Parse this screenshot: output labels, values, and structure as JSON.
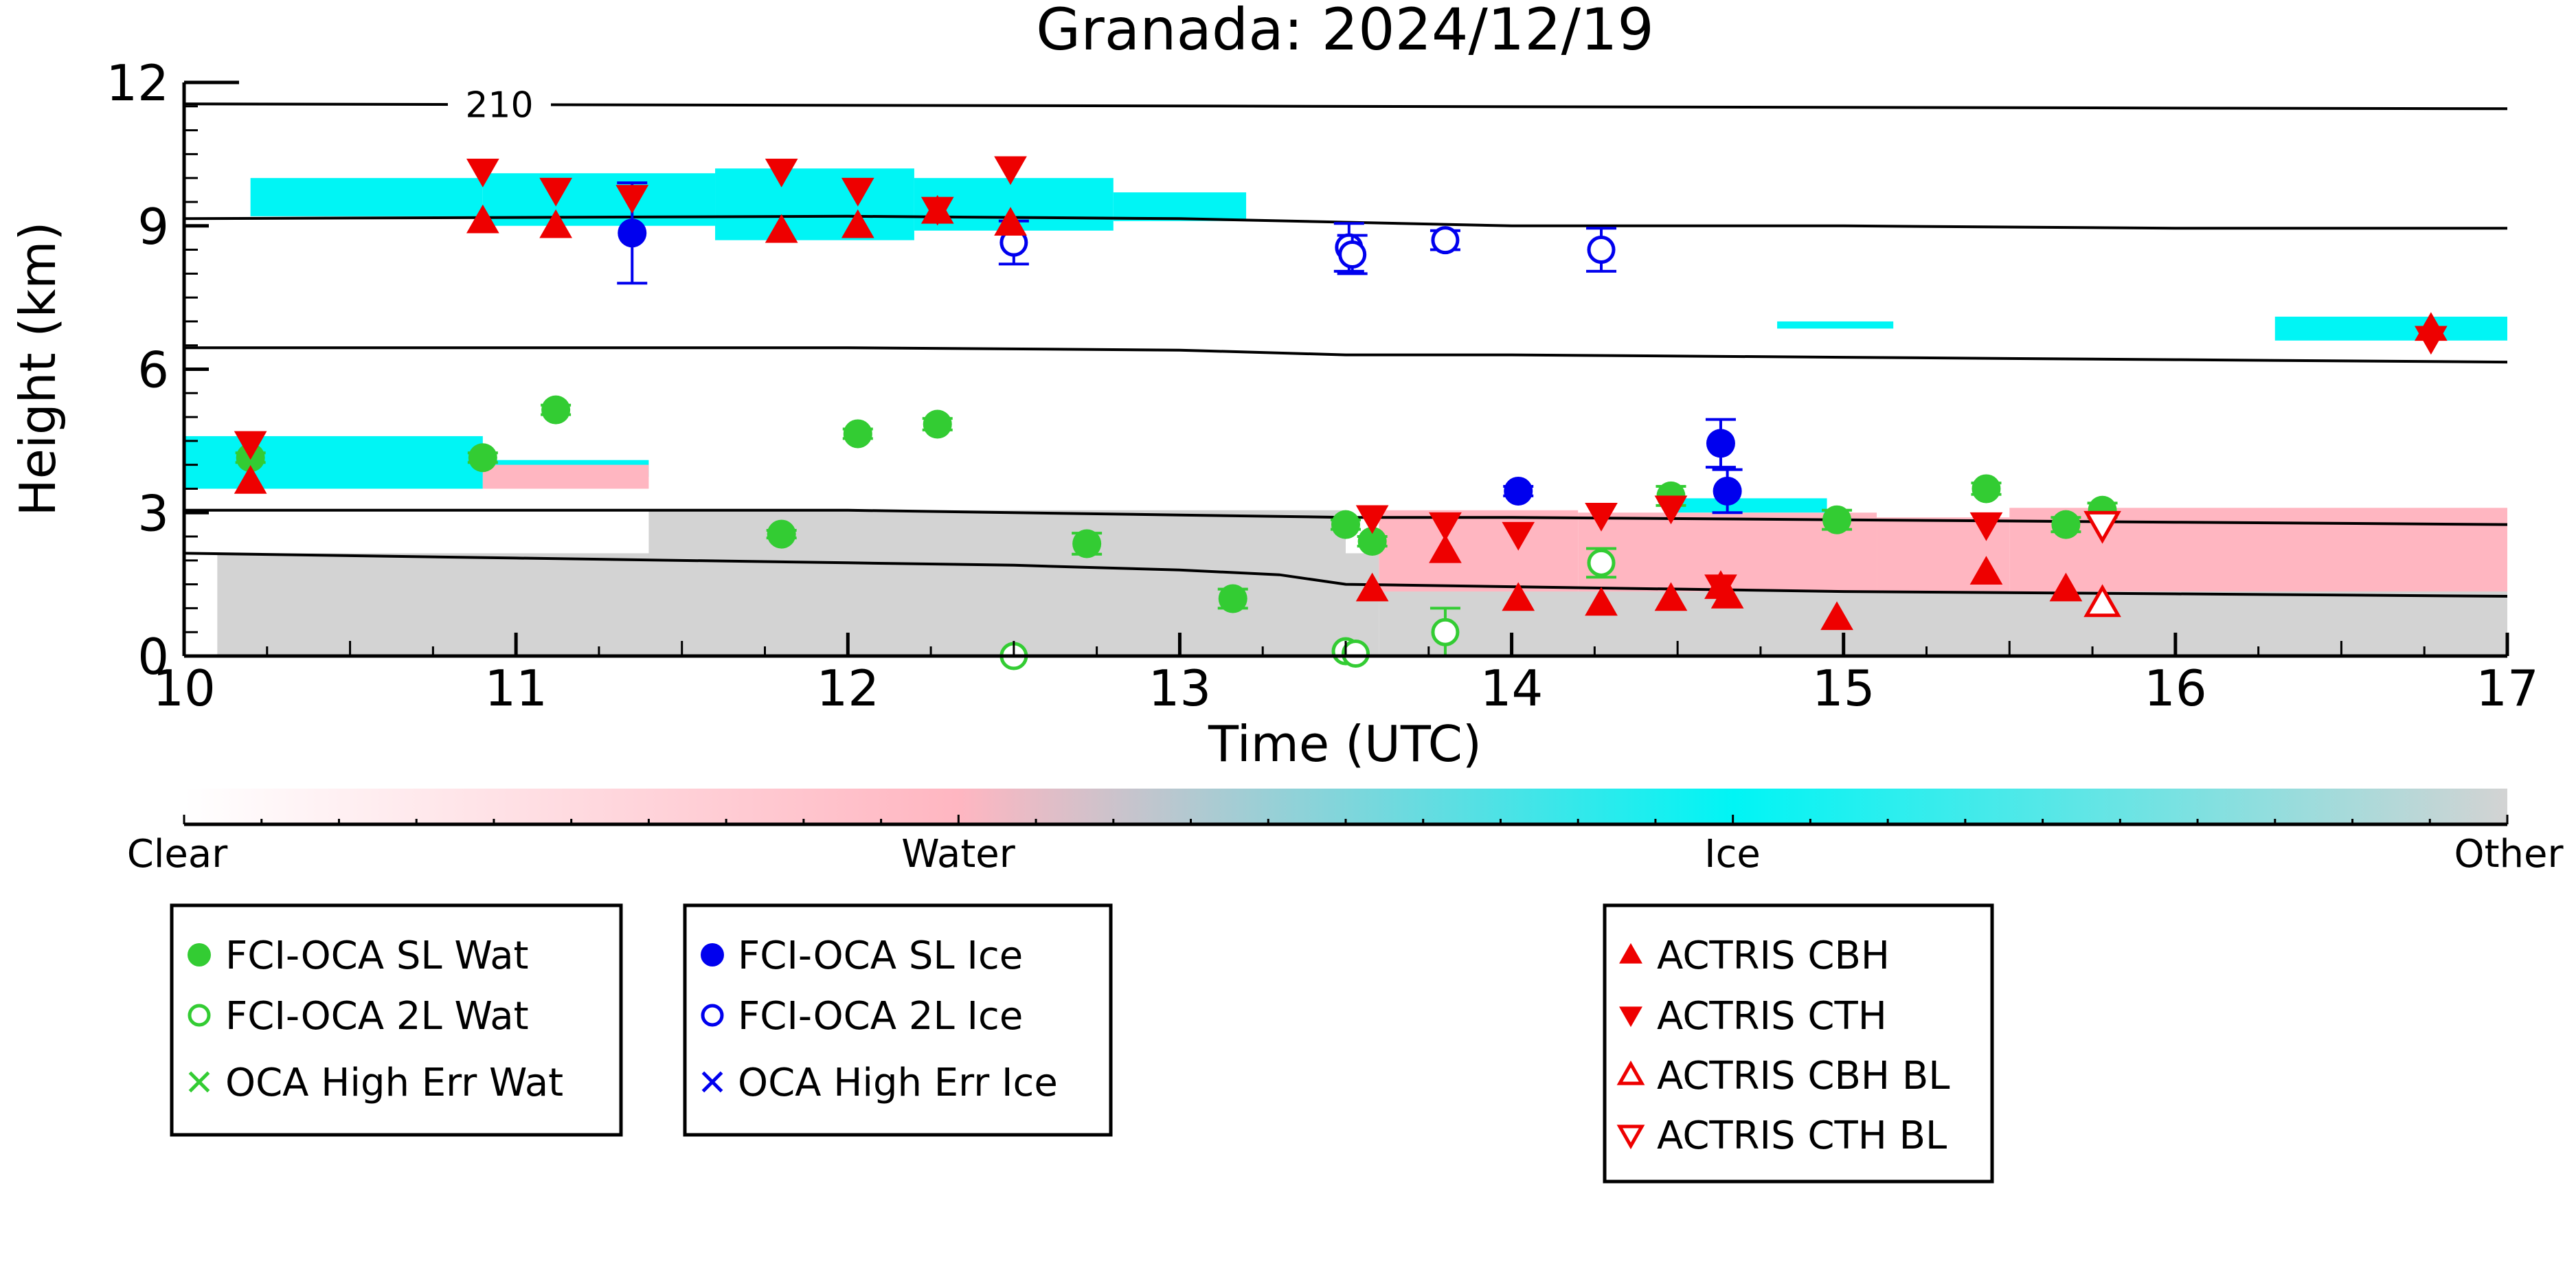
{
  "chart_data": {
    "type": "scatter",
    "title": "Granada: 2024/12/19",
    "xlabel": "Time (UTC)",
    "ylabel": "Height (km)",
    "xlim": [
      10,
      17
    ],
    "ylim": [
      0,
      12
    ],
    "xticks": [
      10,
      11,
      12,
      13,
      14,
      15,
      16,
      17
    ],
    "yticks": [
      0,
      3,
      6,
      9,
      12
    ],
    "reference_lines": [
      {
        "label": "210",
        "points": [
          [
            10,
            11.55
          ],
          [
            17,
            11.45
          ]
        ]
      },
      {
        "points": [
          [
            10,
            9.15
          ],
          [
            12,
            9.2
          ],
          [
            13,
            9.15
          ],
          [
            14,
            9.0
          ],
          [
            15,
            9.0
          ],
          [
            16,
            8.95
          ],
          [
            17,
            8.95
          ]
        ]
      },
      {
        "points": [
          [
            10,
            6.45
          ],
          [
            11,
            6.45
          ],
          [
            12,
            6.45
          ],
          [
            13,
            6.4
          ],
          [
            13.5,
            6.3
          ],
          [
            14,
            6.3
          ],
          [
            15,
            6.25
          ],
          [
            16,
            6.2
          ],
          [
            17,
            6.15
          ]
        ]
      },
      {
        "points": [
          [
            10,
            3.05
          ],
          [
            11,
            3.05
          ],
          [
            12,
            3.05
          ],
          [
            13,
            2.95
          ],
          [
            13.5,
            2.9
          ],
          [
            14,
            2.9
          ],
          [
            15,
            2.85
          ],
          [
            16,
            2.8
          ],
          [
            17,
            2.75
          ]
        ]
      },
      {
        "points": [
          [
            10,
            2.15
          ],
          [
            11,
            2.05
          ],
          [
            12,
            1.95
          ],
          [
            12.5,
            1.9
          ],
          [
            13,
            1.8
          ],
          [
            13.3,
            1.7
          ],
          [
            13.5,
            1.5
          ],
          [
            14,
            1.45
          ],
          [
            15,
            1.35
          ],
          [
            16,
            1.3
          ],
          [
            17,
            1.25
          ]
        ]
      }
    ],
    "series": [
      {
        "name": "FCI-OCA SL Wat",
        "marker": "filled-circle",
        "color": "#33cc33",
        "x": [
          10.2,
          10.9,
          11.12,
          11.8,
          12.03,
          12.27,
          12.72,
          13.16,
          13.5,
          13.58,
          14.48,
          14.98,
          15.43,
          15.67,
          15.78
        ],
        "y": [
          4.15,
          4.15,
          5.15,
          2.55,
          4.65,
          4.85,
          2.35,
          1.2,
          2.75,
          2.4,
          3.35,
          2.85,
          3.5,
          2.75,
          3.05
        ],
        "err": [
          0.1,
          0.1,
          0.1,
          0.08,
          0.1,
          0.12,
          0.22,
          0.2,
          0.1,
          0.1,
          0.2,
          0.2,
          0.12,
          0.15,
          0.15
        ]
      },
      {
        "name": "FCI-OCA 2L Wat",
        "marker": "open-circle",
        "color": "#33cc33",
        "x": [
          12.5,
          13.5,
          13.53,
          13.8,
          14.27
        ],
        "y": [
          0.0,
          0.1,
          0.05,
          0.5,
          1.95
        ],
        "err": [
          0,
          0,
          0,
          0.5,
          0.3
        ]
      },
      {
        "name": "FCI-OCA SL Ice",
        "marker": "filled-circle",
        "color": "#0000ee",
        "x": [
          11.35,
          14.02,
          14.63,
          14.65
        ],
        "y": [
          8.85,
          3.45,
          4.45,
          3.45
        ],
        "err": [
          1.05,
          0.1,
          0.5,
          0.45
        ]
      },
      {
        "name": "FCI-OCA 2L Ice",
        "marker": "open-circle",
        "color": "#0000ee",
        "x": [
          12.5,
          13.51,
          13.52,
          13.8,
          14.27
        ],
        "y": [
          8.65,
          8.55,
          8.4,
          8.7,
          8.5
        ],
        "err": [
          0.45,
          0.5,
          0.4,
          0.2,
          0.45
        ]
      },
      {
        "name": "ACTRIS CBH",
        "marker": "filled-triangle-up",
        "color": "#ee0000",
        "x": [
          10.2,
          10.9,
          11.12,
          11.8,
          12.03,
          12.27,
          12.49,
          13.58,
          13.8,
          14.02,
          14.27,
          14.48,
          14.63,
          14.65,
          14.98,
          15.43,
          15.67,
          16.77
        ],
        "y": [
          3.65,
          9.1,
          9.0,
          8.9,
          9.0,
          9.3,
          9.05,
          1.4,
          2.2,
          1.2,
          1.1,
          1.2,
          1.45,
          1.25,
          0.8,
          1.75,
          1.4,
          6.85
        ]
      },
      {
        "name": "ACTRIS CTH",
        "marker": "filled-triangle-down",
        "color": "#ee0000",
        "x": [
          10.2,
          10.9,
          11.12,
          11.35,
          11.8,
          12.03,
          12.27,
          12.49,
          13.58,
          13.8,
          14.02,
          14.27,
          14.48,
          14.63,
          15.43,
          16.77
        ],
        "y": [
          4.45,
          10.15,
          9.75,
          9.6,
          10.15,
          9.75,
          9.35,
          10.2,
          2.9,
          2.75,
          2.55,
          2.95,
          3.1,
          1.45,
          2.75,
          6.65
        ]
      },
      {
        "name": "ACTRIS CBH BL",
        "marker": "open-triangle-up",
        "color": "#ee0000",
        "x": [
          15.78
        ],
        "y": [
          1.1
        ]
      },
      {
        "name": "ACTRIS CTH BL",
        "marker": "open-triangle-down",
        "color": "#ee0000",
        "x": [
          15.78
        ],
        "y": [
          2.75
        ]
      },
      {
        "name": "OCA High Err Wat",
        "marker": "x",
        "color": "#33cc33",
        "x": [],
        "y": []
      },
      {
        "name": "OCA High Err Ice",
        "marker": "x",
        "color": "#0000ee",
        "x": [],
        "y": []
      }
    ],
    "regions": [
      {
        "class": "Ice",
        "x": [
          10.2,
          10.9
        ],
        "y": [
          9.2,
          10.0
        ]
      },
      {
        "class": "Ice",
        "x": [
          10.9,
          11.6
        ],
        "y": [
          9.0,
          10.1
        ]
      },
      {
        "class": "Ice",
        "x": [
          11.6,
          12.2
        ],
        "y": [
          8.7,
          10.2
        ]
      },
      {
        "class": "Ice",
        "x": [
          12.2,
          12.8
        ],
        "y": [
          8.9,
          10.0
        ]
      },
      {
        "class": "Ice",
        "x": [
          12.8,
          13.2
        ],
        "y": [
          9.1,
          9.7
        ]
      },
      {
        "class": "Ice",
        "x": [
          14.8,
          15.15
        ],
        "y": [
          6.85,
          7.0
        ]
      },
      {
        "class": "Ice",
        "x": [
          16.3,
          17.0
        ],
        "y": [
          6.6,
          7.1
        ]
      },
      {
        "class": "Ice",
        "x": [
          10.0,
          10.9
        ],
        "y": [
          3.5,
          4.6
        ]
      },
      {
        "class": "Ice",
        "x": [
          10.9,
          11.4
        ],
        "y": [
          3.75,
          4.1
        ]
      },
      {
        "class": "Ice",
        "x": [
          14.5,
          14.95
        ],
        "y": [
          3.0,
          3.3
        ]
      },
      {
        "class": "Water",
        "x": [
          10.9,
          11.4
        ],
        "y": [
          3.5,
          4.0
        ]
      },
      {
        "class": "Water",
        "x": [
          13.6,
          14.2
        ],
        "y": [
          1.0,
          3.05
        ]
      },
      {
        "class": "Water",
        "x": [
          14.2,
          15.1
        ],
        "y": [
          0.5,
          3.0
        ]
      },
      {
        "class": "Water",
        "x": [
          15.1,
          15.5
        ],
        "y": [
          0.7,
          2.9
        ]
      },
      {
        "class": "Water",
        "x": [
          15.5,
          17.0
        ],
        "y": [
          1.0,
          3.1
        ]
      },
      {
        "class": "Other",
        "x": [
          10.1,
          13.6
        ],
        "y": [
          0.0,
          2.15
        ]
      },
      {
        "class": "Other",
        "x": [
          11.4,
          13.5
        ],
        "y": [
          2.0,
          3.05
        ]
      },
      {
        "class": "Other",
        "x": [
          13.6,
          17.0
        ],
        "y": [
          0.0,
          1.35
        ]
      }
    ],
    "colorbar": {
      "labels": [
        "Clear",
        "Water",
        "Ice",
        "Other"
      ],
      "colors": [
        "#ffffff",
        "#ffb6c1",
        "#00ffff",
        "#d3d3d3"
      ]
    },
    "legend_groups": [
      [
        "FCI-OCA SL Wat",
        "FCI-OCA 2L Wat",
        "OCA High Err Wat"
      ],
      [
        "FCI-OCA SL Ice",
        "FCI-OCA 2L Ice",
        "OCA High Err Ice"
      ],
      [
        "ACTRIS CBH",
        "ACTRIS CTH",
        "ACTRIS CBH BL",
        "ACTRIS CTH BL"
      ]
    ]
  }
}
